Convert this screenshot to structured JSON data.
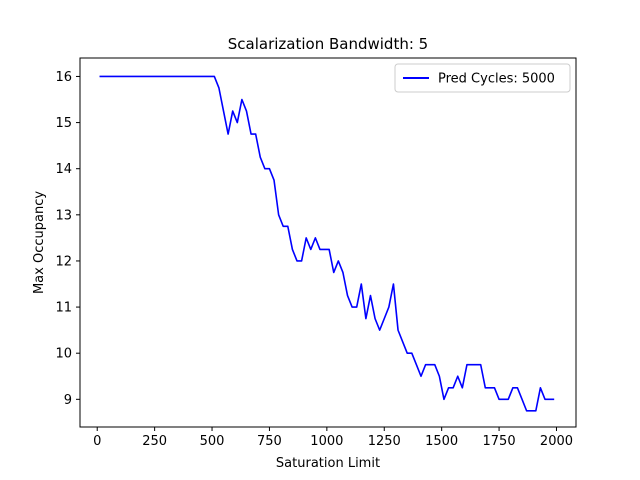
{
  "chart_data": {
    "type": "line",
    "title": "Scalarization Bandwidth: 5",
    "xlabel": "Saturation Limit",
    "ylabel": "Max Occupancy",
    "xlim": [
      -75,
      2085
    ],
    "ylim": [
      8.4,
      16.4
    ],
    "xticks": [
      0,
      250,
      500,
      750,
      1000,
      1250,
      1500,
      1750,
      2000
    ],
    "yticks": [
      9,
      10,
      11,
      12,
      13,
      14,
      15,
      16
    ],
    "grid": false,
    "legend": "upper right",
    "series": [
      {
        "name": "Pred Cycles: 5000",
        "color": "#0000ff",
        "x": [
          10,
          30,
          50,
          70,
          90,
          110,
          130,
          150,
          170,
          190,
          210,
          230,
          250,
          270,
          290,
          310,
          330,
          350,
          370,
          390,
          410,
          430,
          450,
          470,
          490,
          510,
          530,
          550,
          570,
          590,
          610,
          630,
          650,
          670,
          690,
          710,
          730,
          750,
          770,
          790,
          810,
          830,
          850,
          870,
          890,
          910,
          930,
          950,
          970,
          990,
          1010,
          1030,
          1050,
          1070,
          1090,
          1110,
          1130,
          1150,
          1170,
          1190,
          1210,
          1230,
          1250,
          1270,
          1290,
          1310,
          1330,
          1350,
          1370,
          1390,
          1410,
          1430,
          1450,
          1470,
          1490,
          1510,
          1530,
          1550,
          1570,
          1590,
          1610,
          1630,
          1650,
          1670,
          1690,
          1710,
          1730,
          1750,
          1770,
          1790,
          1810,
          1830,
          1850,
          1870,
          1890,
          1910,
          1930,
          1950,
          1970,
          1990
        ],
        "y": [
          16,
          16,
          16,
          16,
          16,
          16,
          16,
          16,
          16,
          16,
          16,
          16,
          16,
          16,
          16,
          16,
          16,
          16,
          16,
          16,
          16,
          16,
          16,
          16,
          16,
          16,
          15.75,
          15.25,
          14.75,
          15.25,
          15,
          15.5,
          15.25,
          14.75,
          14.75,
          14.25,
          14,
          14,
          13.75,
          13,
          12.75,
          12.75,
          12.25,
          12,
          12,
          12.5,
          12.25,
          12.5,
          12.25,
          12.25,
          12.25,
          11.75,
          12,
          11.75,
          11.25,
          11,
          11,
          11.5,
          10.75,
          11.25,
          10.75,
          10.5,
          10.75,
          11,
          11.5,
          10.5,
          10.25,
          10,
          10,
          9.75,
          9.5,
          9.75,
          9.75,
          9.75,
          9.5,
          9,
          9.25,
          9.25,
          9.5,
          9.25,
          9.75,
          9.75,
          9.75,
          9.75,
          9.25,
          9.25,
          9.25,
          9,
          9,
          9,
          9.25,
          9.25,
          9,
          8.75,
          8.75,
          8.75,
          9.25,
          9,
          9,
          9
        ]
      }
    ]
  }
}
